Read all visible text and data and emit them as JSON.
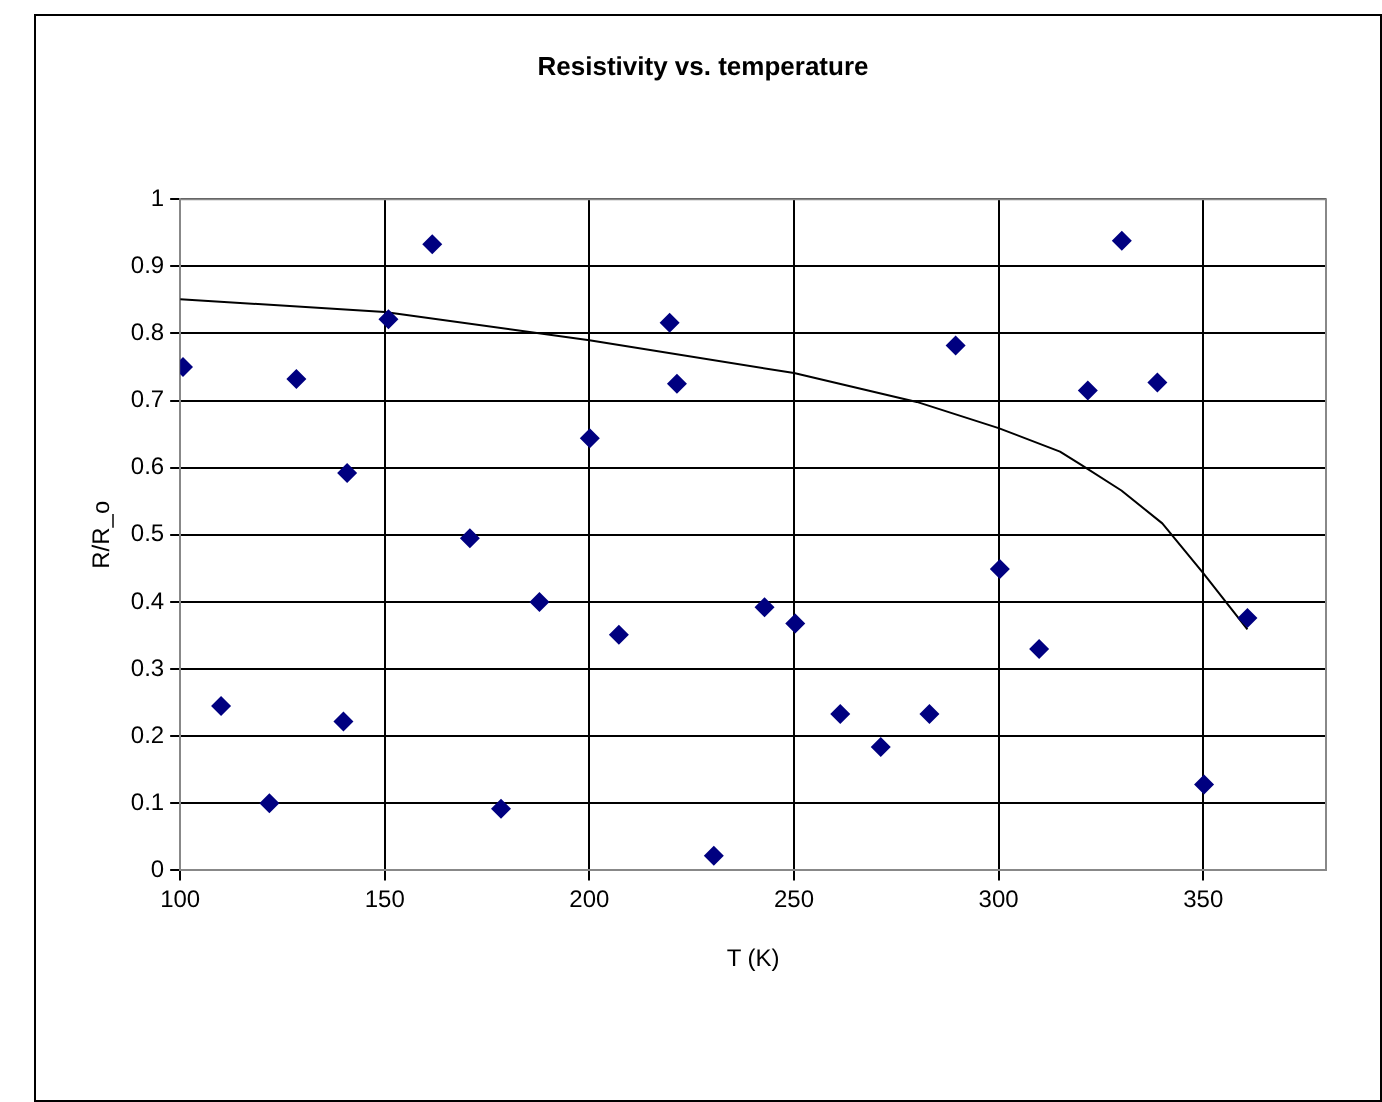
{
  "chart_data": {
    "type": "scatter",
    "title": "Resistivity vs. temperature",
    "xlabel": "T (K)",
    "ylabel": "R/R_o",
    "xlim": [
      100,
      380
    ],
    "xticks": [
      100,
      150,
      200,
      250,
      300,
      350
    ],
    "ylim": [
      0,
      1
    ],
    "yticks": [
      0,
      0.1,
      0.2,
      0.3,
      0.4,
      0.5,
      0.6,
      0.7,
      0.8,
      0.9,
      1
    ],
    "grid": true,
    "legend": false,
    "marker": "diamond",
    "series": [
      {
        "type": "scatter",
        "color": "#000080",
        "x": [
          100.7,
          110,
          121.8,
          128.4,
          139.9,
          140.8,
          150.9,
          161.6,
          170.8,
          178.4,
          187.8,
          200.1,
          207.2,
          219.6,
          221.4,
          230.4,
          242.8,
          250.3,
          261.3,
          271.2,
          283.1,
          289.5,
          300.3,
          309.9,
          321.8,
          330.1,
          338.8,
          350.2,
          360.8
        ],
        "values": [
          0.75,
          0.245,
          0.1,
          0.732,
          0.222,
          0.592,
          0.821,
          0.933,
          0.495,
          0.092,
          0.4,
          0.644,
          0.351,
          0.816,
          0.725,
          0.022,
          0.392,
          0.368,
          0.233,
          0.184,
          0.233,
          0.782,
          0.449,
          0.33,
          0.715,
          0.938,
          0.727,
          0.128,
          0.376
        ]
      },
      {
        "type": "line",
        "color": "#000000",
        "line_style": "solid",
        "marker": "none",
        "x": [
          100,
          150,
          200,
          250,
          280,
          300,
          315,
          320,
          330,
          340,
          350,
          360.8
        ],
        "values": [
          0.851,
          0.832,
          0.79,
          0.741,
          0.698,
          0.659,
          0.624,
          0.605,
          0.566,
          0.517,
          0.443,
          0.359
        ]
      }
    ]
  }
}
